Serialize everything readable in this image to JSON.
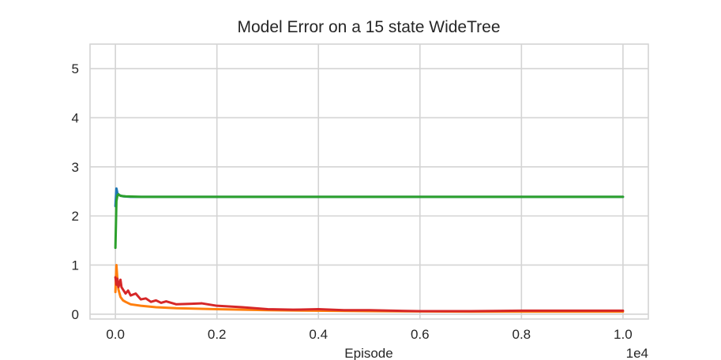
{
  "chart_data": {
    "type": "line",
    "title": "Model Error on a 15 state WideTree",
    "xlabel": "Episode",
    "ylabel": "",
    "x_offset_label": "1e4",
    "xlim": [
      -0.05,
      1.05
    ],
    "ylim": [
      -0.1,
      5.5
    ],
    "xticks": [
      0.0,
      0.2,
      0.4,
      0.6,
      0.8,
      1.0
    ],
    "xtick_labels": [
      "0.0",
      "0.2",
      "0.4",
      "0.6",
      "0.8",
      "1.0"
    ],
    "yticks": [
      0,
      1,
      2,
      3,
      4,
      5
    ],
    "ytick_labels": [
      "0",
      "1",
      "2",
      "3",
      "4",
      "5"
    ],
    "grid": true,
    "series": [
      {
        "color": "#1f77b4",
        "x": [
          0.0,
          0.002,
          0.004,
          0.008,
          0.015,
          0.03,
          0.1,
          0.3,
          0.5,
          0.7,
          1.0
        ],
        "y": [
          2.2,
          2.56,
          2.46,
          2.42,
          2.4,
          2.39,
          2.39,
          2.39,
          2.39,
          2.39,
          2.39
        ]
      },
      {
        "color": "#ff7f0e",
        "x": [
          0.0,
          0.002,
          0.004,
          0.006,
          0.01,
          0.015,
          0.02,
          0.03,
          0.05,
          0.08,
          0.12,
          0.2,
          0.3,
          0.5,
          0.7,
          1.0
        ],
        "y": [
          0.45,
          1.0,
          0.7,
          0.5,
          0.35,
          0.28,
          0.25,
          0.2,
          0.17,
          0.14,
          0.12,
          0.1,
          0.08,
          0.06,
          0.05,
          0.05
        ]
      },
      {
        "color": "#2ca02c",
        "x": [
          0.0,
          0.001,
          0.002,
          0.004,
          0.006,
          0.01,
          0.02,
          0.05,
          0.1,
          0.3,
          0.5,
          0.7,
          1.0
        ],
        "y": [
          1.35,
          1.8,
          2.3,
          2.42,
          2.44,
          2.41,
          2.4,
          2.39,
          2.39,
          2.39,
          2.39,
          2.39,
          2.39
        ]
      },
      {
        "color": "#d62728",
        "x": [
          0.0,
          0.002,
          0.004,
          0.006,
          0.008,
          0.01,
          0.012,
          0.015,
          0.02,
          0.025,
          0.03,
          0.04,
          0.05,
          0.06,
          0.07,
          0.08,
          0.09,
          0.1,
          0.12,
          0.15,
          0.17,
          0.2,
          0.25,
          0.3,
          0.35,
          0.4,
          0.45,
          0.5,
          0.6,
          0.7,
          0.8,
          0.9,
          1.0
        ],
        "y": [
          0.75,
          0.6,
          0.72,
          0.55,
          0.62,
          0.7,
          0.55,
          0.5,
          0.42,
          0.48,
          0.38,
          0.42,
          0.3,
          0.32,
          0.25,
          0.28,
          0.23,
          0.26,
          0.2,
          0.21,
          0.22,
          0.17,
          0.14,
          0.1,
          0.09,
          0.1,
          0.08,
          0.08,
          0.06,
          0.06,
          0.07,
          0.07,
          0.07
        ]
      }
    ]
  }
}
